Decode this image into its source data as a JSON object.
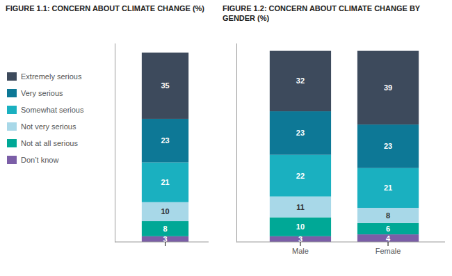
{
  "chart_data": [
    {
      "type": "bar",
      "stacked": true,
      "data_labels": true,
      "legend": "left",
      "tick_labels": false,
      "title": "FIGURE 1.1: CONCERN ABOUT CLIMATE CHANGE (%)",
      "categories": [
        null
      ],
      "ylim": [
        0,
        105
      ],
      "series": [
        {
          "name": "Extremely serious",
          "color": "#3d4a5c",
          "values": [
            35
          ]
        },
        {
          "name": "Very serious",
          "color": "#0d7896",
          "values": [
            23
          ]
        },
        {
          "name": "Somewhat serious",
          "color": "#1ab0c0",
          "values": [
            21
          ]
        },
        {
          "name": "Not very serious",
          "color": "#a8d8e8",
          "values": [
            10
          ]
        },
        {
          "name": "Not at all serious",
          "color": "#00a896",
          "values": [
            8
          ]
        },
        {
          "name": "Don’t know",
          "color": "#7b5ea7",
          "values": [
            3
          ]
        }
      ]
    },
    {
      "type": "bar",
      "stacked": true,
      "data_labels": true,
      "tick_labels": "x",
      "title": "FIGURE 1.2: CONCERN ABOUT CLIMATE CHANGE BY\nGENDER (%)",
      "categories": [
        "Male",
        "Female"
      ],
      "ylim": [
        0,
        105
      ],
      "series": [
        {
          "name": "Extremely serious",
          "color": "#3d4a5c",
          "values": [
            32,
            39
          ]
        },
        {
          "name": "Very serious",
          "color": "#0d7896",
          "values": [
            23,
            23
          ]
        },
        {
          "name": "Somewhat serious",
          "color": "#1ab0c0",
          "values": [
            22,
            21
          ]
        },
        {
          "name": "Not very serious",
          "color": "#a8d8e8",
          "values": [
            11,
            8
          ]
        },
        {
          "name": "Not at all serious",
          "color": "#00a896",
          "values": [
            10,
            6
          ]
        },
        {
          "name": "Don’t know",
          "color": "#7b5ea7",
          "values": [
            3,
            4
          ]
        }
      ]
    }
  ]
}
